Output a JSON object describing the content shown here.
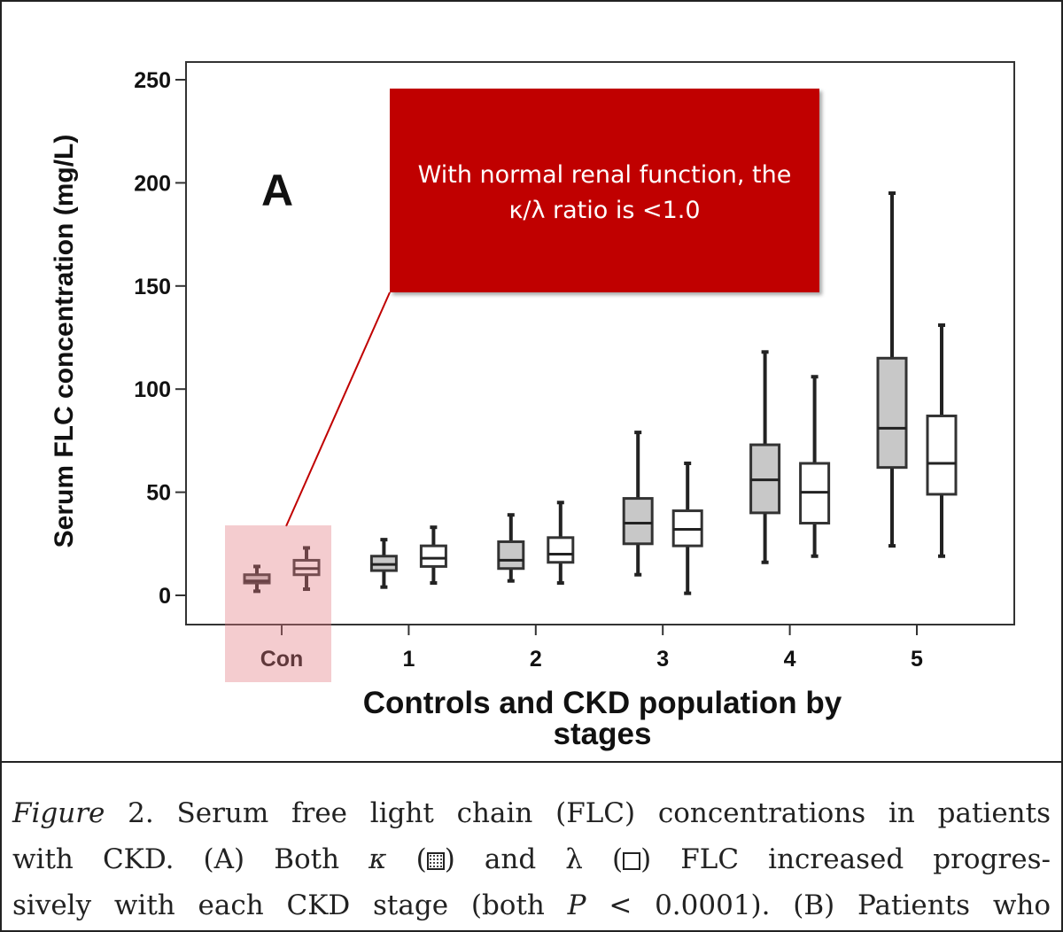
{
  "chart_data": {
    "type": "box",
    "panel_label": "A",
    "ylabel": "Serum FLC concentration (mg/L)",
    "xlabel_lines": [
      "Controls and CKD population by",
      "stages"
    ],
    "ylim": [
      0,
      250
    ],
    "yticks": [
      "0",
      "50",
      "100",
      "150",
      "200",
      "250"
    ],
    "categories": [
      "Con",
      "1",
      "2",
      "3",
      "4",
      "5"
    ],
    "series": [
      {
        "name": "κ",
        "fill": "#c8c8c8",
        "boxes": [
          {
            "min": 2,
            "q1": 6,
            "median": 7,
            "q3": 10,
            "max": 14
          },
          {
            "min": 4,
            "q1": 12,
            "median": 15,
            "q3": 19,
            "max": 27
          },
          {
            "min": 7,
            "q1": 13,
            "median": 17,
            "q3": 26,
            "max": 39
          },
          {
            "min": 10,
            "q1": 25,
            "median": 35,
            "q3": 47,
            "max": 79
          },
          {
            "min": 16,
            "q1": 40,
            "median": 56,
            "q3": 73,
            "max": 118
          },
          {
            "min": 24,
            "q1": 62,
            "median": 81,
            "q3": 115,
            "max": 195
          }
        ]
      },
      {
        "name": "λ",
        "fill": "#ffffff",
        "boxes": [
          {
            "min": 3,
            "q1": 10,
            "median": 13,
            "q3": 17,
            "max": 23
          },
          {
            "min": 6,
            "q1": 14,
            "median": 18,
            "q3": 24,
            "max": 33
          },
          {
            "min": 6,
            "q1": 16,
            "median": 20,
            "q3": 28,
            "max": 45
          },
          {
            "min": 1,
            "q1": 24,
            "median": 32,
            "q3": 41,
            "max": 64
          },
          {
            "min": 19,
            "q1": 35,
            "median": 50,
            "q3": 64,
            "max": 106
          },
          {
            "min": 19,
            "q1": 49,
            "median": 64,
            "q3": 87,
            "max": 131
          }
        ]
      }
    ],
    "annotation": {
      "text_line1": "With normal renal function, the",
      "text_line2": "κ/λ ratio is <1.0",
      "color": "#c00000",
      "highlight_category": "Con"
    }
  },
  "caption": {
    "l1_italic": "Figure",
    "l1_text": " 2. Serum free light chain (FLC) concentrations in patients",
    "l2_a": "with CKD. (A) Both ",
    "l2_kappa": "κ",
    "l2_b": " (",
    "l2_c": ") and λ (",
    "l2_d": ") FLC increased progres-",
    "l3_a": "sively with each CKD stage (both ",
    "l3_p": "P",
    "l3_b": " < 0.0001). (B) Patients who"
  }
}
